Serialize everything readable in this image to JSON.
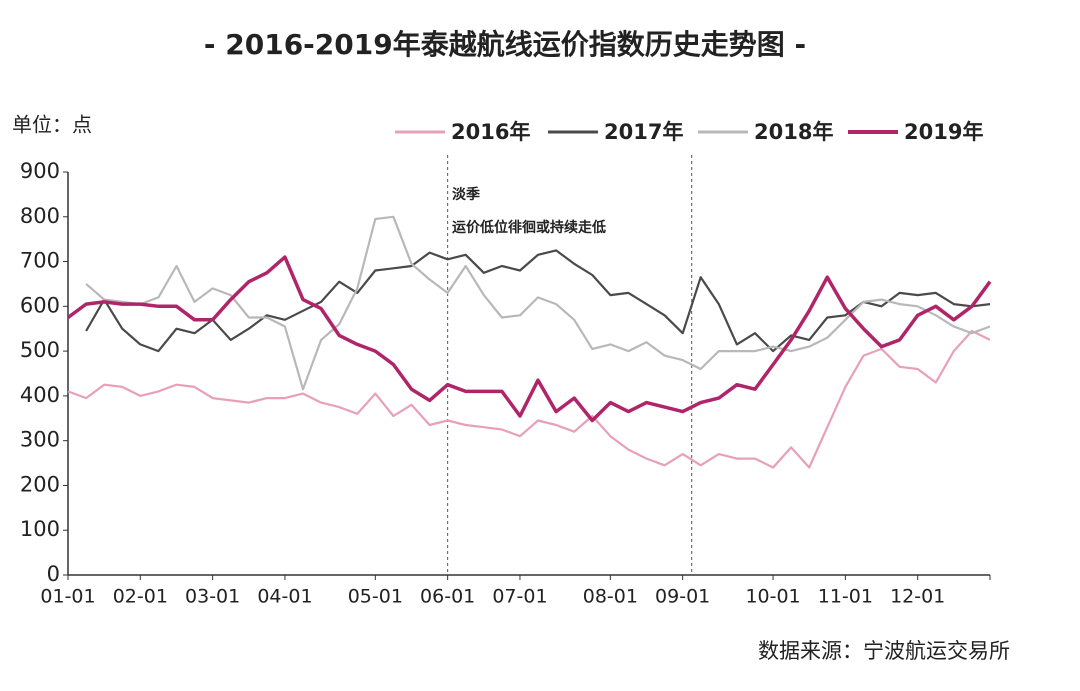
{
  "chart_data": {
    "type": "line",
    "title": "- 2016-2019年泰越航线运价指数历史走势图 -",
    "y_label": "单位：点",
    "source": "数据来源：宁波航运交易所",
    "annotations": [
      "淡季",
      "运价低位徘徊或持续走低"
    ],
    "categories": [
      "01-01",
      null,
      null,
      null,
      "02-01",
      null,
      null,
      null,
      "03-01",
      null,
      null,
      null,
      "04-01",
      null,
      null,
      null,
      null,
      "05-01",
      null,
      null,
      null,
      "06-01",
      null,
      null,
      null,
      "07-01",
      null,
      null,
      null,
      null,
      "08-01",
      null,
      null,
      null,
      "09-01",
      null,
      null,
      null,
      null,
      "10-01",
      null,
      null,
      null,
      "11-01",
      null,
      null,
      null,
      "12-01",
      null,
      null,
      null,
      null
    ],
    "ylim": [
      0,
      900
    ],
    "yticks": [
      0,
      100,
      200,
      300,
      400,
      500,
      600,
      700,
      800,
      900
    ],
    "series": [
      {
        "name": "2016年",
        "color": "#e8a0b8",
        "values": [
          410,
          395,
          425,
          420,
          400,
          410,
          425,
          420,
          395,
          390,
          385,
          395,
          395,
          405,
          385,
          375,
          360,
          405,
          355,
          380,
          335,
          345,
          335,
          330,
          325,
          310,
          345,
          335,
          320,
          355,
          310,
          280,
          260,
          245,
          270,
          245,
          270,
          260,
          260,
          240,
          285,
          240,
          330,
          420,
          490,
          505,
          465,
          460,
          430,
          500,
          545,
          525
        ]
      },
      {
        "name": "2017年",
        "color": "#4a4a4a",
        "values": [
          null,
          545,
          615,
          550,
          515,
          500,
          550,
          540,
          570,
          525,
          550,
          580,
          570,
          590,
          610,
          655,
          630,
          680,
          685,
          690,
          720,
          705,
          715,
          675,
          690,
          680,
          715,
          725,
          695,
          670,
          625,
          630,
          605,
          580,
          540,
          665,
          605,
          515,
          540,
          500,
          535,
          525,
          575,
          580,
          610,
          600,
          630,
          625,
          630,
          605,
          600,
          605
        ]
      },
      {
        "name": "2018年",
        "color": "#b8b8b8",
        "values": [
          null,
          650,
          615,
          610,
          605,
          620,
          690,
          610,
          640,
          625,
          575,
          575,
          555,
          415,
          525,
          560,
          640,
          795,
          800,
          695,
          660,
          630,
          690,
          625,
          575,
          580,
          620,
          605,
          570,
          505,
          515,
          500,
          520,
          490,
          480,
          460,
          500,
          500,
          500,
          510,
          500,
          510,
          530,
          570,
          610,
          615,
          605,
          600,
          580,
          555,
          540,
          555
        ]
      },
      {
        "name": "2019年",
        "color": "#b0246a",
        "values": [
          575,
          605,
          610,
          605,
          605,
          600,
          600,
          570,
          570,
          615,
          655,
          675,
          710,
          615,
          595,
          535,
          515,
          500,
          470,
          415,
          390,
          425,
          410,
          410,
          410,
          355,
          435,
          365,
          395,
          345,
          385,
          365,
          385,
          375,
          365,
          385,
          395,
          425,
          415,
          470,
          525,
          590,
          665,
          595,
          550,
          510,
          525,
          580,
          600,
          570,
          600,
          655
        ]
      }
    ]
  }
}
